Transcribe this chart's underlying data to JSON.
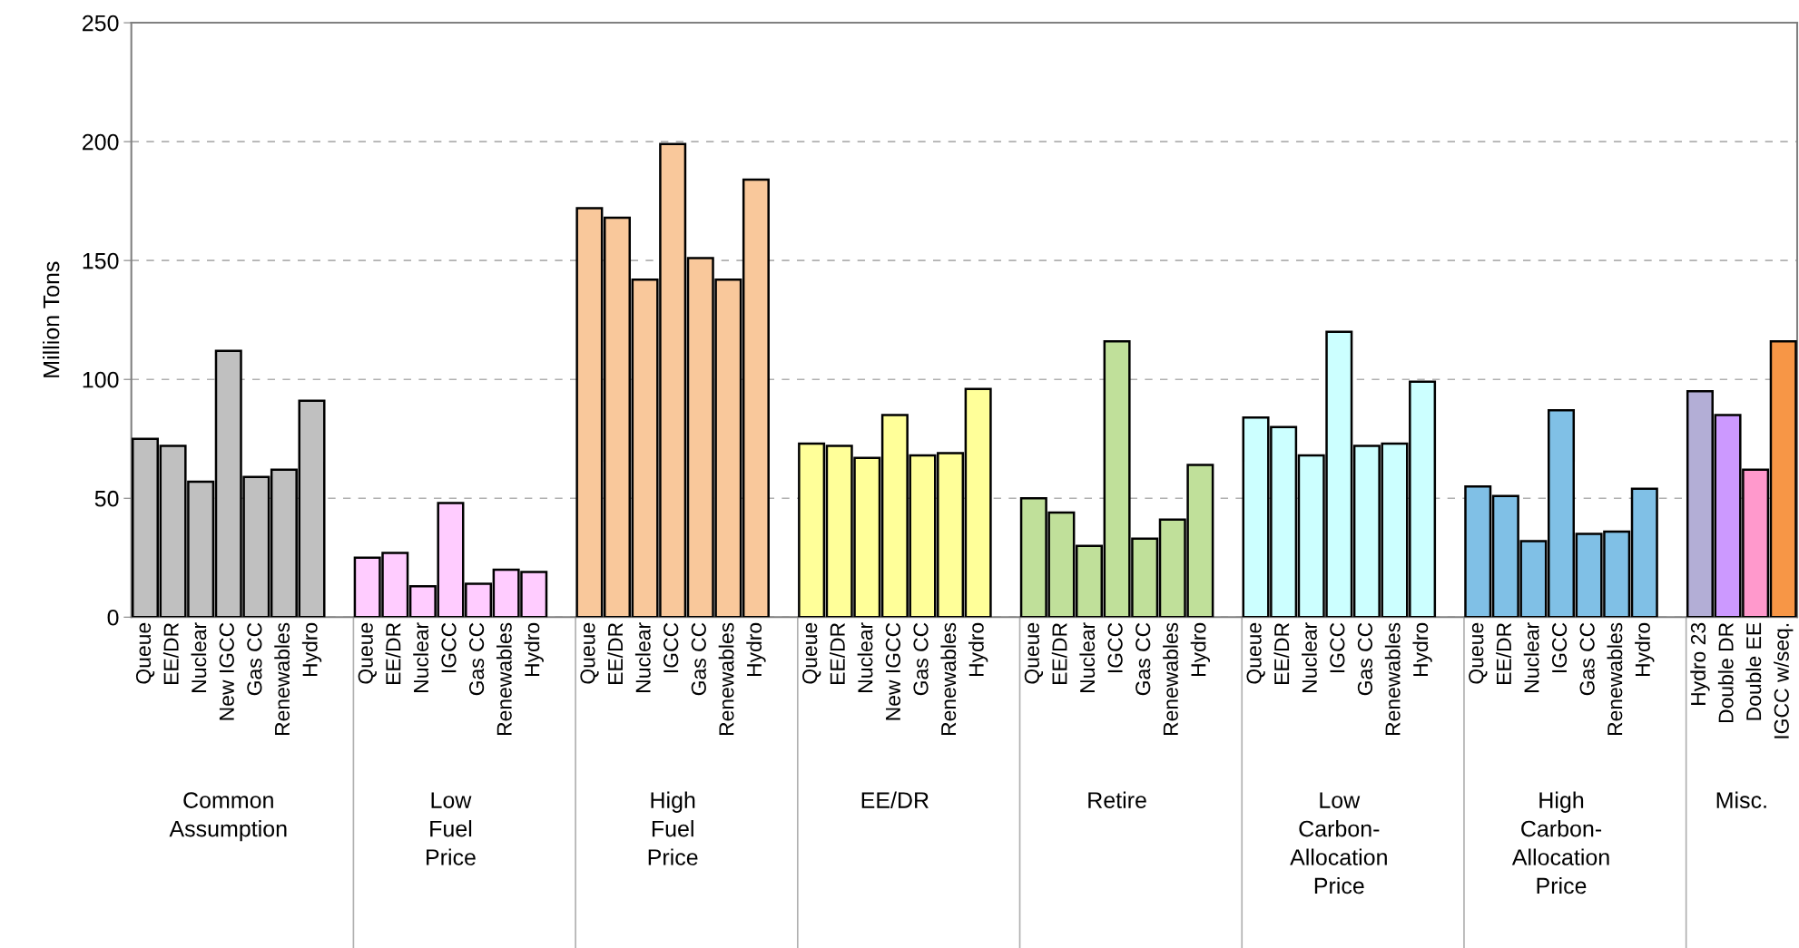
{
  "chart_data": {
    "type": "bar",
    "ylabel": "Million Tons",
    "categories": [
      "Queue",
      "EE/DR",
      "Nuclear",
      "New IGCC",
      "Gas CC",
      "Renewables",
      "Hydro",
      null,
      "Queue",
      "EE/DR",
      "Nuclear",
      "IGCC",
      "Gas CC",
      "Renewables",
      "Hydro",
      null,
      "Queue",
      "EE/DR",
      "Nuclear",
      "IGCC",
      "Gas CC",
      "Renewables",
      "Hydro",
      null,
      "Queue",
      "EE/DR",
      "Nuclear",
      "New IGCC",
      "Gas CC",
      "Renewables",
      "Hydro",
      null,
      "Queue",
      "EE/DR",
      "Nuclear",
      "IGCC",
      "Gas CC",
      "Renewables",
      "Hydro",
      null,
      "Queue",
      "EE/DR",
      "Nuclear",
      "IGCC",
      "Gas CC",
      "Renewables",
      "Hydro",
      null,
      "Queue",
      "EE/DR",
      "Nuclear",
      "IGCC",
      "Gas CC",
      "Renewables",
      "Hydro",
      null,
      "Hydro 23",
      "Double DR",
      "Double EE",
      "IGCC w/seq."
    ],
    "values": [
      75,
      72,
      57,
      112,
      59,
      62,
      91,
      null,
      25,
      27,
      13,
      48,
      14,
      20,
      19,
      null,
      172,
      168,
      142,
      199,
      151,
      142,
      184,
      null,
      73,
      72,
      67,
      85,
      68,
      69,
      96,
      null,
      50,
      44,
      30,
      116,
      33,
      41,
      64,
      null,
      84,
      80,
      68,
      120,
      72,
      73,
      99,
      null,
      55,
      51,
      32,
      87,
      35,
      36,
      54,
      null,
      95,
      85,
      62,
      116
    ],
    "colors": [
      "#c0c0c0",
      "#c0c0c0",
      "#c0c0c0",
      "#c0c0c0",
      "#c0c0c0",
      "#c0c0c0",
      "#c0c0c0",
      null,
      "#ffccff",
      "#ffccff",
      "#ffccff",
      "#ffccff",
      "#ffccff",
      "#ffccff",
      "#ffccff",
      null,
      "#f9c89b",
      "#f9c89b",
      "#f9c89b",
      "#f9c89b",
      "#f9c89b",
      "#f9c89b",
      "#f9c89b",
      null,
      "#ffff99",
      "#ffff99",
      "#ffff99",
      "#ffff99",
      "#ffff99",
      "#ffff99",
      "#ffff99",
      null,
      "#c0e09a",
      "#c0e09a",
      "#c0e09a",
      "#c0e09a",
      "#c0e09a",
      "#c0e09a",
      "#c0e09a",
      null,
      "#ccffff",
      "#ccffff",
      "#ccffff",
      "#ccffff",
      "#ccffff",
      "#ccffff",
      "#ccffff",
      null,
      "#80c0e6",
      "#80c0e6",
      "#80c0e6",
      "#80c0e6",
      "#80c0e6",
      "#80c0e6",
      "#80c0e6",
      null,
      "#b3aed6",
      "#cc99ff",
      "#ff99cc",
      "#f79646"
    ],
    "annotations": [
      "Common\nAssumption",
      "Low\nFuel\nPrice",
      "High\nFuel\nPrice",
      "EE/DR",
      "Retire",
      "Low\nCarbon-\nAllocation\nPrice",
      "High\nCarbon-\nAllocation\nPrice",
      "Misc."
    ],
    "ylim": [
      0,
      250
    ],
    "yticks": [
      0,
      50,
      100,
      150,
      200,
      250
    ],
    "grid": "y",
    "legend": false
  }
}
